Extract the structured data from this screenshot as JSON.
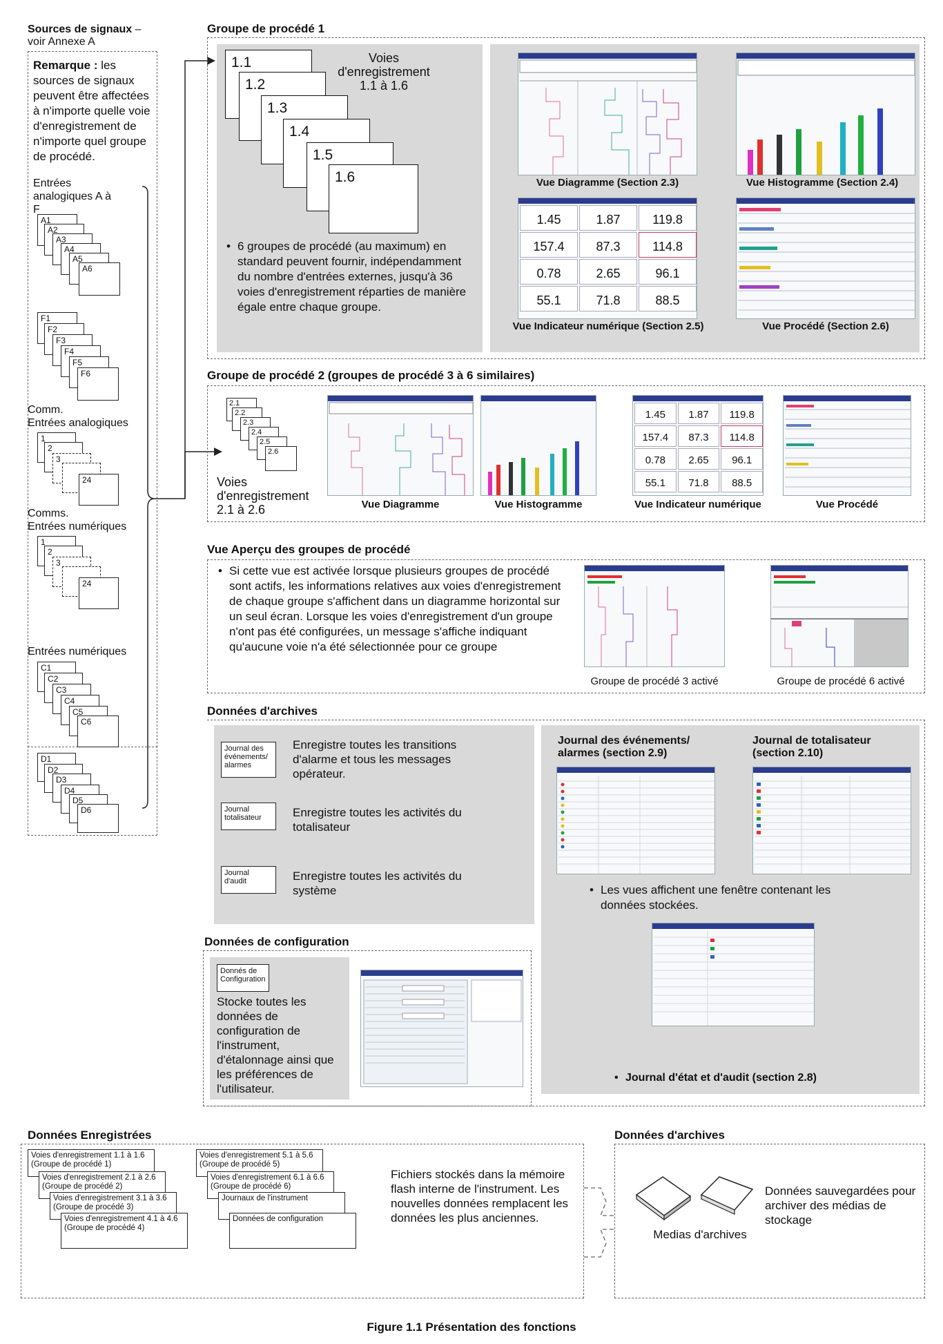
{
  "signal_sources": {
    "title": "Sources de signaux",
    "title_dash": " –",
    "subtitle": "voir Annexe A",
    "remark_bold": "Remarque :",
    "remark_text": " les sources de signaux peuvent être affectées à n'importe quelle voie d'enregistrement de n'importe quel groupe de procédé.",
    "analog_label": "Entrées analogiques A à F",
    "analog_a": [
      "A1",
      "A2",
      "A3",
      "A4",
      "A5",
      "A6"
    ],
    "analog_f": [
      "F1",
      "F2",
      "F3",
      "F4",
      "F5",
      "F6"
    ],
    "comm_analog_label_1": "Comm.",
    "comm_analog_label_2": "Entrées analogiques",
    "comm_digital_label_1": "Comms.",
    "comm_digital_label_2": "Entrées numériques",
    "stack_first": [
      "1",
      "2",
      "3"
    ],
    "stack_last": "24",
    "digital_label": "Entrées numériques",
    "digital_c": [
      "C1",
      "C2",
      "C3",
      "C4",
      "C5",
      "C6"
    ],
    "digital_d": [
      "D1",
      "D2",
      "D3",
      "D4",
      "D5",
      "D6"
    ]
  },
  "group1": {
    "title": "Groupe de procédé 1",
    "channels_label": "Voies d'enregistrement 1.1 à 1.6",
    "channels": [
      "1.1",
      "1.2",
      "1.3",
      "1.4",
      "1.5",
      "1.6"
    ],
    "bullet": "6 groupes de procédé (au maximum) en standard peuvent fournir, indépendamment du nombre d'entrées externes, jusqu'à 36 voies d'enregistrement réparties de manière égale entre chaque groupe.",
    "view_chart": "Vue Diagramme (Section 2.3)",
    "view_bar": "Vue Histogramme (Section 2.4)",
    "view_digital": "Vue Indicateur numérique (Section 2.5)",
    "view_process": "Vue Procédé (Section 2.6)",
    "digital_values": [
      "1.45",
      "1.87",
      "119.8",
      "157.4",
      "87.3",
      "114.8",
      "0.78",
      "2.65",
      "96.1",
      "55.1",
      "71.8",
      "88.5"
    ]
  },
  "group2": {
    "title": "Groupe de procédé 2 (groupes de procédé 3 à 6 similaires)",
    "channels": [
      "2.1",
      "2.2",
      "2.3",
      "2.4",
      "2.5",
      "2.6"
    ],
    "channels_label_1": "Voies",
    "channels_label_2": "d'enregistrement",
    "channels_label_3": "2.1 à 2.6",
    "view_chart": "Vue Diagramme",
    "view_bar": "Vue Histogramme",
    "view_digital": "Vue Indicateur numérique",
    "view_process": "Vue Procédé"
  },
  "overview": {
    "title": "Vue Aperçu des groupes de procédé",
    "bullet": "Si cette vue est activée lorsque plusieurs groupes de procédé sont actifs, les informations relatives aux voies d'enregistrement de chaque groupe s'affichent dans un diagramme horizontal sur un seul écran. Lorsque les voies d'enregistrement d'un groupe n'ont pas été configurées, un message s'affiche indiquant qu'aucune voie n'a été sélectionnée pour ce groupe",
    "caption_3": "Groupe de procédé 3 activé",
    "caption_6": "Groupe de procédé 6 activé"
  },
  "archive": {
    "title": "Données d'archives",
    "event_box": "Journal des événements/ alarmes",
    "event_desc": "Enregistre toutes les transitions d'alarme et tous les messages opérateur.",
    "totalizer_box": "Journal totalisateur",
    "totalizer_desc": "Enregistre toutes les activités du totalisateur",
    "audit_box": "Journal d'audit",
    "audit_desc": "Enregistre toutes les activités du système",
    "event_log_title": "Journal des événements/ alarmes (section 2.9)",
    "totalizer_log_title": "Journal de totalisateur (section 2.10)",
    "views_bullet": "Les vues affichent une fenêtre contenant les données stockées.",
    "audit_bullet": "Journal d'état et d'audit (section 2.8)"
  },
  "config": {
    "title": "Données de configuration",
    "box": "Donnés de Configuration",
    "desc": "Stocke toutes les données de configuration de l'instrument, d'étalonnage ainsi que les préférences de l'utilisateur."
  },
  "recorded": {
    "title": "Données Enregistrées",
    "left_stack": [
      "Voies d'enregistrement 1.1 à 1.6|(Groupe de procédé 1)",
      "Voies d'enregistrement 2.1 à 2.6|(Groupe de procédé 2)",
      "Voies d'enregistrement 3.1 à 3.6|(Groupe de procédé 3)",
      "Voies d'enregistrement 4.1 à 4.6|(Groupe de procédé 4)"
    ],
    "right_stack": [
      "Voies d'enregistrement 5.1 à 5.6|(Groupe de procédé 5)",
      "Voies d'enregistrement 6.1 à 6.6|(Groupe de procédé 6)",
      "Journaux de l'instrument",
      "Données de configuration"
    ],
    "desc": "Fichiers stockés dans la mémoire flash interne de l'instrument. Les nouvelles données remplacent les données les plus anciennes."
  },
  "archive_media": {
    "title": "Données d'archives",
    "media_label": "Medias d'archives",
    "desc": "Données sauvegardées pour archiver des médias de stockage"
  },
  "figure_caption": "Figure 1.1 Présentation des fonctions",
  "colors": {
    "panel": "#d9d9d9",
    "screen_header": "#2b3c8f"
  }
}
